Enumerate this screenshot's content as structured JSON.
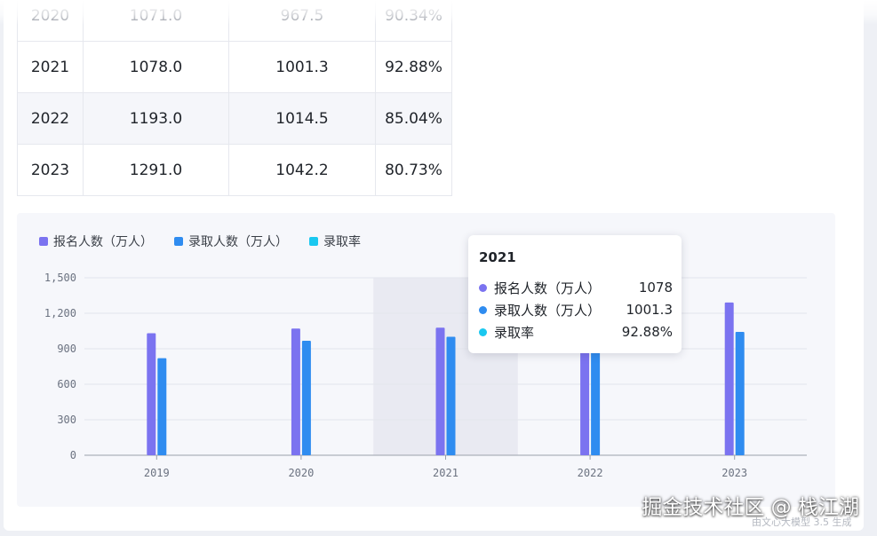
{
  "table": {
    "rows": [
      [
        "2020",
        "1071.0",
        "967.5",
        "90.34%"
      ],
      [
        "2021",
        "1078.0",
        "1001.3",
        "92.88%"
      ],
      [
        "2022",
        "1193.0",
        "1014.5",
        "85.04%"
      ],
      [
        "2023",
        "1291.0",
        "1042.2",
        "80.73%"
      ]
    ]
  },
  "legend": [
    {
      "label": "报名人数（万人）",
      "color": "#7b73f0"
    },
    {
      "label": "录取人数（万人）",
      "color": "#2f8cf0"
    },
    {
      "label": "录取率",
      "color": "#1ac8f0"
    }
  ],
  "chart_data": {
    "type": "bar",
    "categories": [
      "2019",
      "2020",
      "2021",
      "2022",
      "2023"
    ],
    "series": [
      {
        "name": "报名人数（万人）",
        "color": "#7b73f0",
        "values": [
          1031,
          1071,
          1078,
          1193,
          1291
        ]
      },
      {
        "name": "录取人数（万人）",
        "color": "#2f8cf0",
        "values": [
          820,
          967.5,
          1001.3,
          1014.5,
          1042.2
        ]
      },
      {
        "name": "录取率",
        "color": "#1ac8f0",
        "values": [
          null,
          90.34,
          92.88,
          85.04,
          80.73
        ]
      }
    ],
    "yticks": [
      "0",
      "300",
      "600",
      "900",
      "1,200",
      "1,500"
    ],
    "ylim": [
      0,
      1500
    ],
    "highlight_category": "2021",
    "legend_position": "top-left"
  },
  "tooltip": {
    "title": "2021",
    "rows": [
      {
        "label": "报名人数（万人）",
        "value": "1078",
        "color": "#7b73f0"
      },
      {
        "label": "录取人数（万人）",
        "value": "1001.3",
        "color": "#2f8cf0"
      },
      {
        "label": "录取率",
        "value": "92.88%",
        "color": "#1ac8f0"
      }
    ]
  },
  "footer": {
    "model_note": "由文心大模型 3.5 生成",
    "watermark": "掘金技术社区 @ 栈江湖"
  }
}
